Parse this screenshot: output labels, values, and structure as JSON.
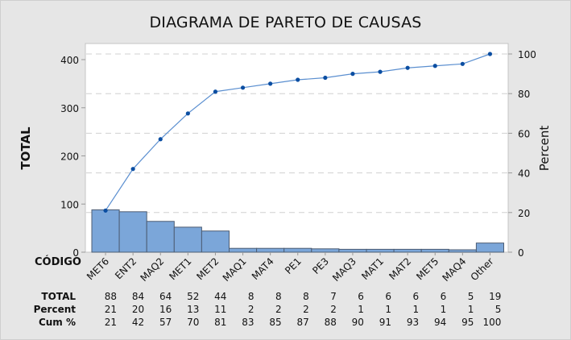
{
  "chart_data": {
    "type": "pareto",
    "title": "DIAGRAMA DE PARETO DE CAUSAS",
    "xlabel": "CÓDIGO",
    "ylabel": "TOTAL",
    "y2label": "Percent",
    "ylim": [
      0,
      412
    ],
    "y2lim": [
      0,
      103
    ],
    "yticks": [
      0,
      100,
      200,
      300,
      400
    ],
    "y2ticks": [
      0,
      20,
      40,
      60,
      80,
      100
    ],
    "grid": "dashed horizontal",
    "categories": [
      "MET6",
      "ENT2",
      "MAQ2",
      "MET1",
      "MET2",
      "MAQ1",
      "MAT4",
      "PE1",
      "PE3",
      "MAQ3",
      "MAT1",
      "MAT2",
      "MET5",
      "MAQ4",
      "Other"
    ],
    "series": [
      {
        "name": "TOTAL",
        "type": "bar",
        "values": [
          88,
          84,
          64,
          52,
          44,
          8,
          8,
          8,
          7,
          6,
          6,
          6,
          6,
          5,
          19
        ]
      },
      {
        "name": "Percent",
        "type": "table",
        "values": [
          21,
          20,
          16,
          13,
          11,
          2,
          2,
          2,
          2,
          1,
          1,
          1,
          1,
          1,
          5
        ]
      },
      {
        "name": "Cum %",
        "type": "line",
        "values": [
          21,
          42,
          57,
          70,
          81,
          83,
          85,
          87,
          88,
          90,
          91,
          93,
          94,
          95,
          100
        ]
      }
    ],
    "table_row_labels": [
      "TOTAL",
      "Percent",
      "Cum %"
    ],
    "colors": {
      "bar_fill": "#7ba6d9",
      "bar_stroke": "#4d5d73",
      "line": "#5b8fd0",
      "marker": "#0b4ea2",
      "grid": "#d0d0d0",
      "background": "#e6e6e6",
      "plot_bg": "#ffffff"
    }
  }
}
